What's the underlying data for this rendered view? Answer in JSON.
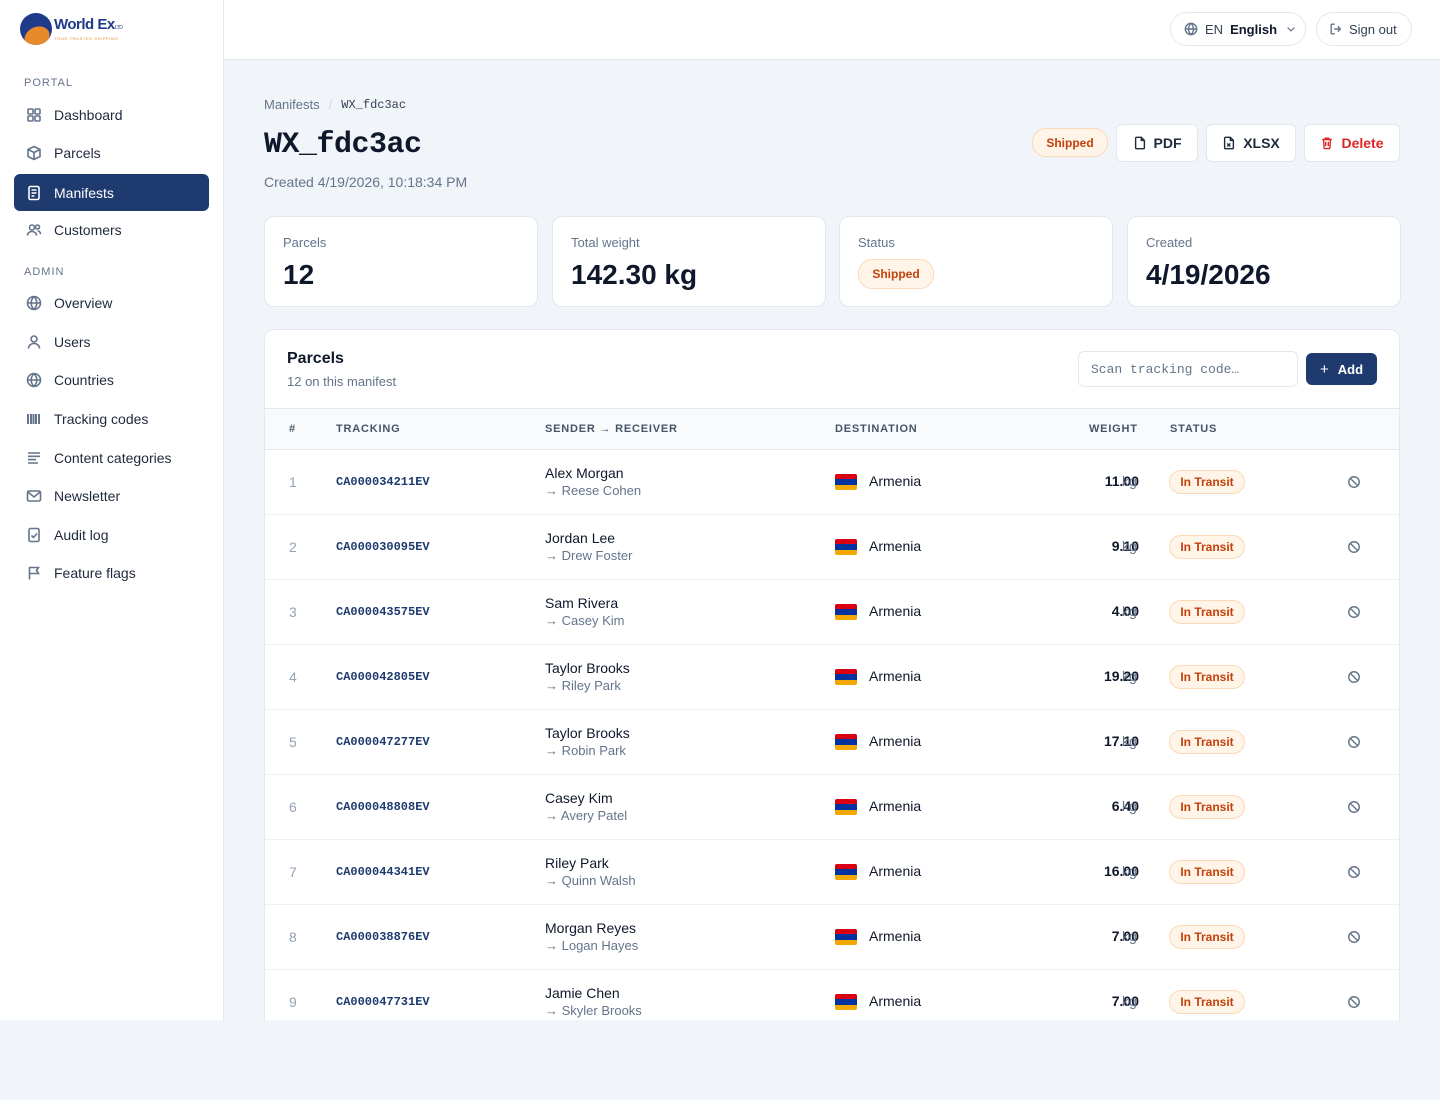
{
  "brand": {
    "name": "World Ex",
    "suffix": "LTD",
    "tagline": "YOUR TRUSTED SHIPPING",
    "primary_color": "#1e3a6e",
    "accent_color": "#e8892b"
  },
  "sidebar": {
    "portal_label": "PORTAL",
    "admin_label": "ADMIN",
    "portal_items": [
      {
        "label": "Dashboard",
        "icon": "grid-icon"
      },
      {
        "label": "Parcels",
        "icon": "box-icon"
      },
      {
        "label": "Manifests",
        "icon": "document-icon",
        "active": true
      },
      {
        "label": "Customers",
        "icon": "users-icon"
      }
    ],
    "admin_items": [
      {
        "label": "Overview",
        "icon": "globe-icon"
      },
      {
        "label": "Users",
        "icon": "user-icon"
      },
      {
        "label": "Countries",
        "icon": "globe-icon"
      },
      {
        "label": "Tracking codes",
        "icon": "barcode-icon"
      },
      {
        "label": "Content categories",
        "icon": "lines-icon"
      },
      {
        "label": "Newsletter",
        "icon": "mail-icon"
      },
      {
        "label": "Audit log",
        "icon": "checklist-icon"
      },
      {
        "label": "Feature flags",
        "icon": "flag-icon"
      }
    ]
  },
  "header": {
    "lang_code": "EN",
    "lang_name": "English",
    "signout_label": "Sign out"
  },
  "breadcrumb": {
    "parent": "Manifests",
    "current": "WX_fdc3ac"
  },
  "page": {
    "title": "WX_fdc3ac",
    "created_text": "Created 4/19/2026, 10:18:34 PM",
    "status_badge": "Shipped",
    "pdf_label": "PDF",
    "xlsx_label": "XLSX",
    "delete_label": "Delete"
  },
  "stats": {
    "parcels_label": "Parcels",
    "parcels_value": "12",
    "weight_label": "Total weight",
    "weight_value": "142.30 kg",
    "status_label": "Status",
    "status_value": "Shipped",
    "created_label": "Created",
    "created_value": "4/19/2026"
  },
  "parcels_card": {
    "title": "Parcels",
    "subtitle": "12 on this manifest",
    "scan_placeholder": "Scan tracking code…",
    "add_label": "Add",
    "columns": {
      "num": "#",
      "tracking": "TRACKING",
      "sender_receiver": "SENDER → RECEIVER",
      "destination": "DESTINATION",
      "weight": "WEIGHT",
      "status": "STATUS"
    },
    "rows": [
      {
        "num": "1",
        "tracking": "CA000034211EV",
        "sender": "Alex Morgan",
        "receiver": "→ Reese Cohen",
        "destination": "Armenia",
        "weight": "11.00",
        "unit": "kg",
        "status": "In Transit"
      },
      {
        "num": "2",
        "tracking": "CA000030095EV",
        "sender": "Jordan Lee",
        "receiver": "→ Drew Foster",
        "destination": "Armenia",
        "weight": "9.10",
        "unit": "kg",
        "status": "In Transit"
      },
      {
        "num": "3",
        "tracking": "CA000043575EV",
        "sender": "Sam Rivera",
        "receiver": "→ Casey Kim",
        "destination": "Armenia",
        "weight": "4.00",
        "unit": "kg",
        "status": "In Transit"
      },
      {
        "num": "4",
        "tracking": "CA000042805EV",
        "sender": "Taylor Brooks",
        "receiver": "→ Riley Park",
        "destination": "Armenia",
        "weight": "19.20",
        "unit": "kg",
        "status": "In Transit"
      },
      {
        "num": "5",
        "tracking": "CA000047277EV",
        "sender": "Taylor Brooks",
        "receiver": "→ Robin Park",
        "destination": "Armenia",
        "weight": "17.10",
        "unit": "kg",
        "status": "In Transit"
      },
      {
        "num": "6",
        "tracking": "CA000048808EV",
        "sender": "Casey Kim",
        "receiver": "→ Avery Patel",
        "destination": "Armenia",
        "weight": "6.40",
        "unit": "kg",
        "status": "In Transit"
      },
      {
        "num": "7",
        "tracking": "CA000044341EV",
        "sender": "Riley Park",
        "receiver": "→ Quinn Walsh",
        "destination": "Armenia",
        "weight": "16.00",
        "unit": "kg",
        "status": "In Transit"
      },
      {
        "num": "8",
        "tracking": "CA000038876EV",
        "sender": "Morgan Reyes",
        "receiver": "→ Logan Hayes",
        "destination": "Armenia",
        "weight": "7.00",
        "unit": "kg",
        "status": "In Transit"
      },
      {
        "num": "9",
        "tracking": "CA000047731EV",
        "sender": "Jamie Chen",
        "receiver": "→ Skyler Brooks",
        "destination": "Armenia",
        "weight": "7.00",
        "unit": "kg",
        "status": "In Transit"
      }
    ]
  },
  "flag_colors": [
    "#d90012",
    "#0033a0",
    "#f2a800"
  ]
}
